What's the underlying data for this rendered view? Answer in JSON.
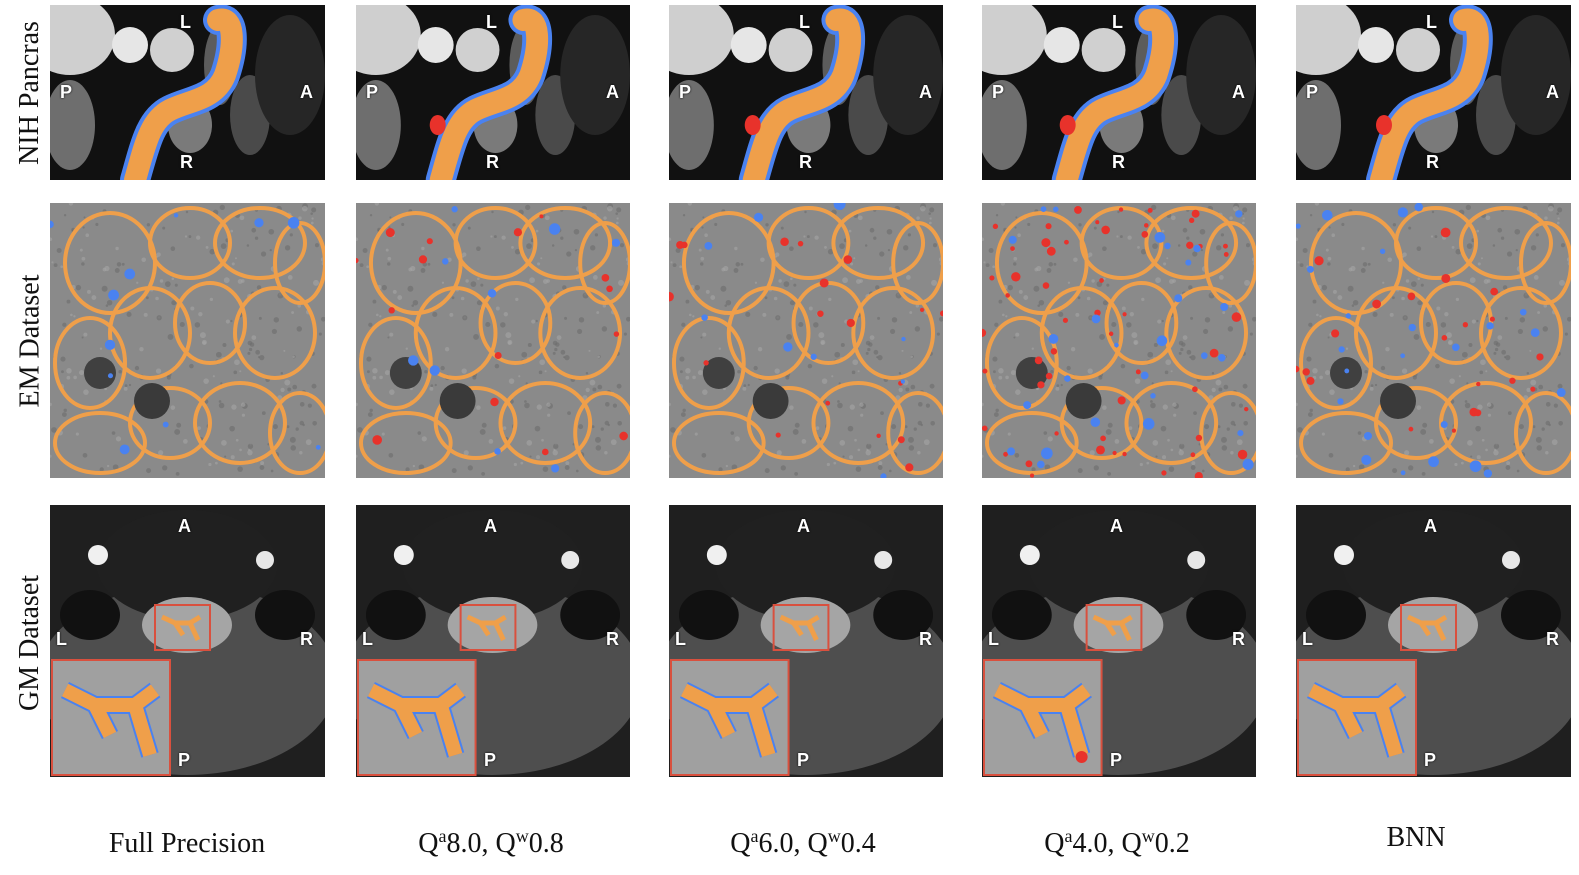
{
  "rows": [
    {
      "key": "nih",
      "label": "NIH Pancras",
      "orient": {
        "top": "L",
        "left": "P",
        "right": "A",
        "bottom": "R"
      }
    },
    {
      "key": "em",
      "label": "EM Dataset"
    },
    {
      "key": "gm",
      "label": "GM Dataset",
      "orient": {
        "top": "A",
        "left": "L",
        "right": "R",
        "bottom": "P"
      }
    }
  ],
  "columns": [
    {
      "key": "fp",
      "caption": "Full Precision",
      "red_level": 0.0,
      "blue_level": 0.35
    },
    {
      "key": "q8",
      "caption_parts": {
        "qa": "Q",
        "a_sup": "a",
        "a_val": "8.0, ",
        "qw": "Q",
        "w_sup": "w",
        "w_val": "0.8"
      },
      "red_level": 0.25,
      "blue_level": 0.3
    },
    {
      "key": "q6",
      "caption_parts": {
        "qa": "Q",
        "a_sup": "a",
        "a_val": "6.0, ",
        "qw": "Q",
        "w_sup": "w",
        "w_val": "0.4"
      },
      "red_level": 0.3,
      "blue_level": 0.3
    },
    {
      "key": "q4",
      "caption_parts": {
        "qa": "Q",
        "a_sup": "a",
        "a_val": "4.0, ",
        "qw": "Q",
        "w_sup": "w",
        "w_val": "0.2"
      },
      "red_level": 0.9,
      "blue_level": 0.9
    },
    {
      "key": "bnn",
      "caption": "BNN",
      "red_level": 0.35,
      "blue_level": 0.8
    }
  ],
  "colors": {
    "correct": "#ef9f4a",
    "false_negative": "#4a82f0",
    "false_positive": "#e8322b",
    "inset_border": "#d9503e",
    "em_background": "#8a8a8a",
    "ct_background": "#111111"
  }
}
